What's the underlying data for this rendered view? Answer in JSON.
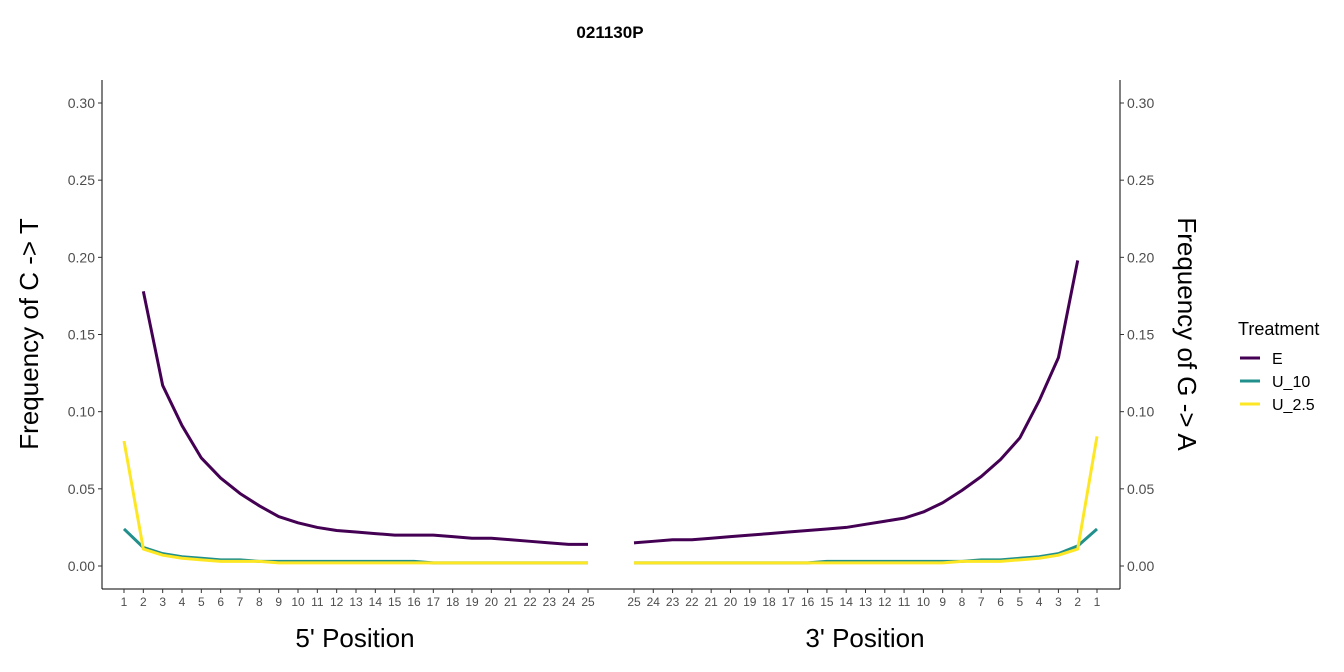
{
  "chart_data": {
    "type": "line",
    "title": "021130P",
    "y_left_label": "Frequency of C -> T",
    "y_right_label": "Frequency of G -> A",
    "ylim": [
      0,
      0.31
    ],
    "y_ticks": [
      "0.00",
      "0.05",
      "0.10",
      "0.15",
      "0.20",
      "0.25",
      "0.30"
    ],
    "legend": {
      "title": "Treatment",
      "position": "right"
    },
    "grid": false,
    "colors": {
      "E": "#440154",
      "U_10": "#21908C",
      "U_2.5": "#FDE725"
    },
    "panels": [
      {
        "xlabel": "5' Position",
        "x": [
          1,
          2,
          3,
          4,
          5,
          6,
          7,
          8,
          9,
          10,
          11,
          12,
          13,
          14,
          15,
          16,
          17,
          18,
          19,
          20,
          21,
          22,
          23,
          24,
          25
        ],
        "series": [
          {
            "name": "E",
            "values": [
              null,
              0.178,
              0.117,
              0.091,
              0.07,
              0.057,
              0.047,
              0.039,
              0.032,
              0.028,
              0.025,
              0.023,
              0.022,
              0.021,
              0.02,
              0.02,
              0.02,
              0.019,
              0.018,
              0.018,
              0.017,
              0.016,
              0.015,
              0.014,
              0.014
            ]
          },
          {
            "name": "U_10",
            "values": [
              0.024,
              0.012,
              0.008,
              0.006,
              0.005,
              0.004,
              0.004,
              0.003,
              0.003,
              0.003,
              0.003,
              0.003,
              0.003,
              0.003,
              0.003,
              0.003,
              0.002,
              0.002,
              0.002,
              0.002,
              0.002,
              0.002,
              0.002,
              0.002,
              0.002
            ]
          },
          {
            "name": "U_2.5",
            "values": [
              0.081,
              0.011,
              0.007,
              0.005,
              0.004,
              0.003,
              0.003,
              0.003,
              0.002,
              0.002,
              0.002,
              0.002,
              0.002,
              0.002,
              0.002,
              0.002,
              0.002,
              0.002,
              0.002,
              0.002,
              0.002,
              0.002,
              0.002,
              0.002,
              0.002
            ]
          }
        ]
      },
      {
        "xlabel": "3' Position",
        "x": [
          25,
          24,
          23,
          22,
          21,
          20,
          19,
          18,
          17,
          16,
          15,
          14,
          13,
          12,
          11,
          10,
          9,
          8,
          7,
          6,
          5,
          4,
          3,
          2,
          1
        ],
        "series": [
          {
            "name": "E",
            "values": [
              0.015,
              0.016,
              0.017,
              0.017,
              0.018,
              0.019,
              0.02,
              0.021,
              0.022,
              0.023,
              0.024,
              0.025,
              0.027,
              0.029,
              0.031,
              0.035,
              0.041,
              0.049,
              0.058,
              0.069,
              0.083,
              0.107,
              0.135,
              0.198,
              null
            ]
          },
          {
            "name": "U_10",
            "values": [
              0.002,
              0.002,
              0.002,
              0.002,
              0.002,
              0.002,
              0.002,
              0.002,
              0.002,
              0.002,
              0.003,
              0.003,
              0.003,
              0.003,
              0.003,
              0.003,
              0.003,
              0.003,
              0.004,
              0.004,
              0.005,
              0.006,
              0.008,
              0.013,
              0.024
            ]
          },
          {
            "name": "U_2.5",
            "values": [
              0.002,
              0.002,
              0.002,
              0.002,
              0.002,
              0.002,
              0.002,
              0.002,
              0.002,
              0.002,
              0.002,
              0.002,
              0.002,
              0.002,
              0.002,
              0.002,
              0.002,
              0.003,
              0.003,
              0.003,
              0.004,
              0.005,
              0.007,
              0.011,
              0.084
            ]
          }
        ]
      }
    ]
  }
}
